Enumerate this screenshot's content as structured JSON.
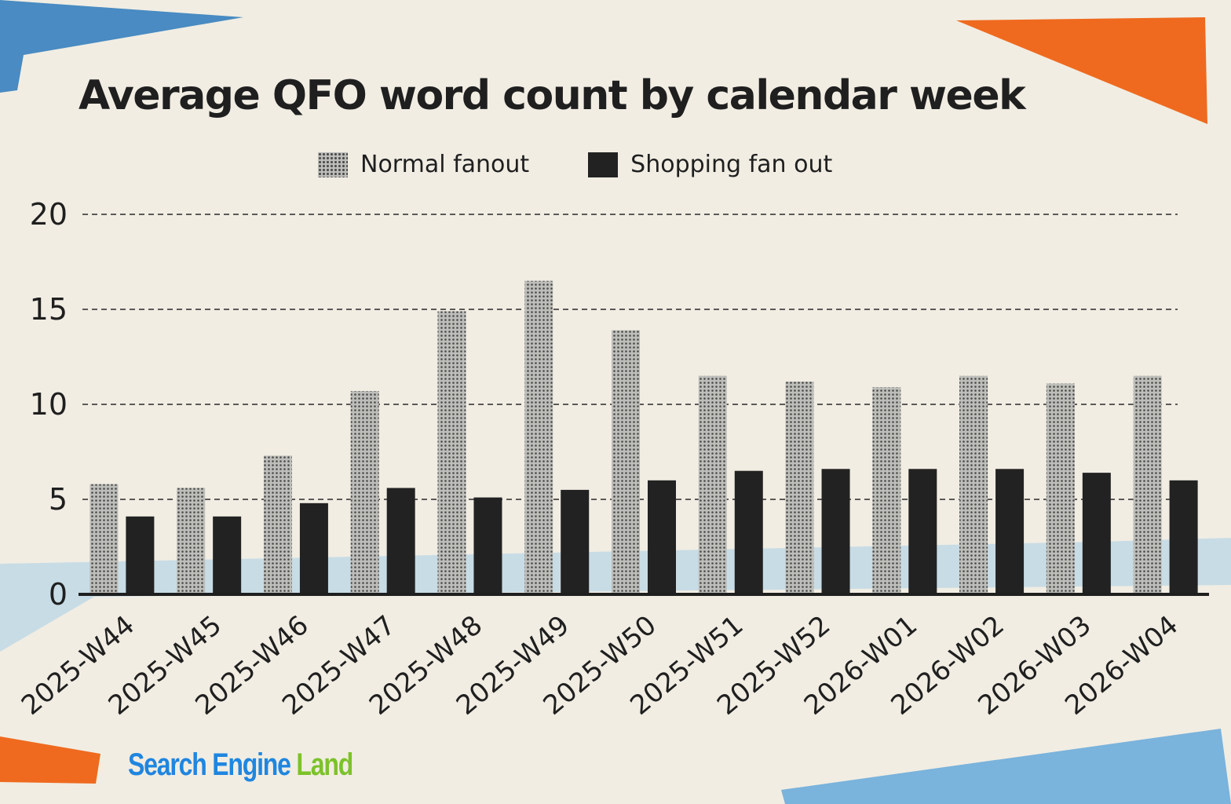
{
  "brand": {
    "part1": "Search Engine",
    "part2": "Land",
    "color1": "#1f86e0",
    "color2": "#7cc22b"
  },
  "colors": {
    "background": "#f1ede3",
    "normal_fill": "#bdbdb9",
    "normal_dots": "#4a4a4a",
    "shopping_fill": "#222222",
    "accent_orange": "#ef6a1f",
    "accent_blue": "#3f86c0",
    "light_blue_band": "#b9d6e6"
  },
  "chart_data": {
    "type": "bar",
    "title": "Average QFO word count by calendar week",
    "xlabel": "",
    "ylabel": "",
    "categories": [
      "2025-W44",
      "2025-W45",
      "2025-W46",
      "2025-W47",
      "2025-W48",
      "2025-W49",
      "2025-W50",
      "2025-W51",
      "2025-W52",
      "2026-W01",
      "2026-W02",
      "2026-W03",
      "2026-W04"
    ],
    "series": [
      {
        "name": "Normal fanout",
        "values": [
          5.8,
          5.6,
          7.3,
          10.7,
          14.9,
          16.5,
          13.9,
          11.5,
          11.2,
          10.9,
          11.5,
          11.1,
          11.5
        ]
      },
      {
        "name": "Shopping fan out",
        "values": [
          4.1,
          4.1,
          4.8,
          5.6,
          5.1,
          5.5,
          6.0,
          6.5,
          6.6,
          6.6,
          6.6,
          6.4,
          6.0
        ]
      }
    ],
    "ylim": [
      0,
      20
    ],
    "yticks": [
      0,
      5,
      10,
      15,
      20
    ],
    "grid": true,
    "legend_position": "top-center"
  }
}
